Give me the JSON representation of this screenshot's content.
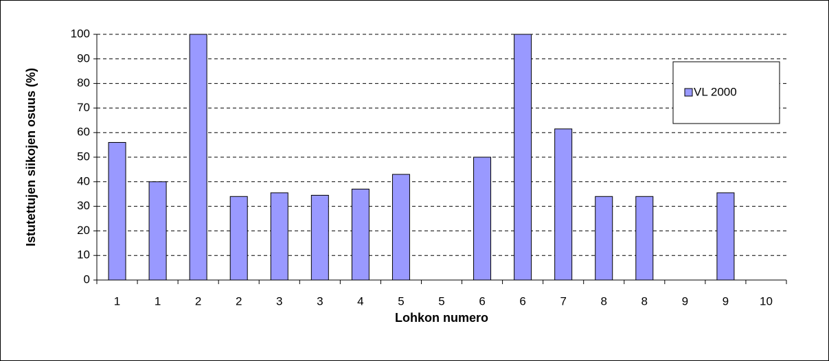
{
  "chart_data": {
    "type": "bar",
    "x_label": "Lohkon numero",
    "y_label": "Istutettujen siikojen osuus (%)",
    "categories": [
      "1",
      "1",
      "2",
      "2",
      "3",
      "3",
      "4",
      "5",
      "5",
      "6",
      "6",
      "7",
      "8",
      "8",
      "9",
      "9",
      "10"
    ],
    "series": [
      {
        "name": "VL 2000",
        "color": "#9999ff",
        "values": [
          56,
          40,
          100,
          34,
          35.5,
          34.5,
          37,
          43,
          0,
          50,
          100,
          61.5,
          34,
          34,
          0,
          35.5,
          0
        ]
      }
    ],
    "ylim": [
      0,
      100
    ],
    "yticks": [
      0,
      10,
      20,
      30,
      40,
      50,
      60,
      70,
      80,
      90,
      100
    ],
    "grid": true,
    "legend": "upper right"
  }
}
